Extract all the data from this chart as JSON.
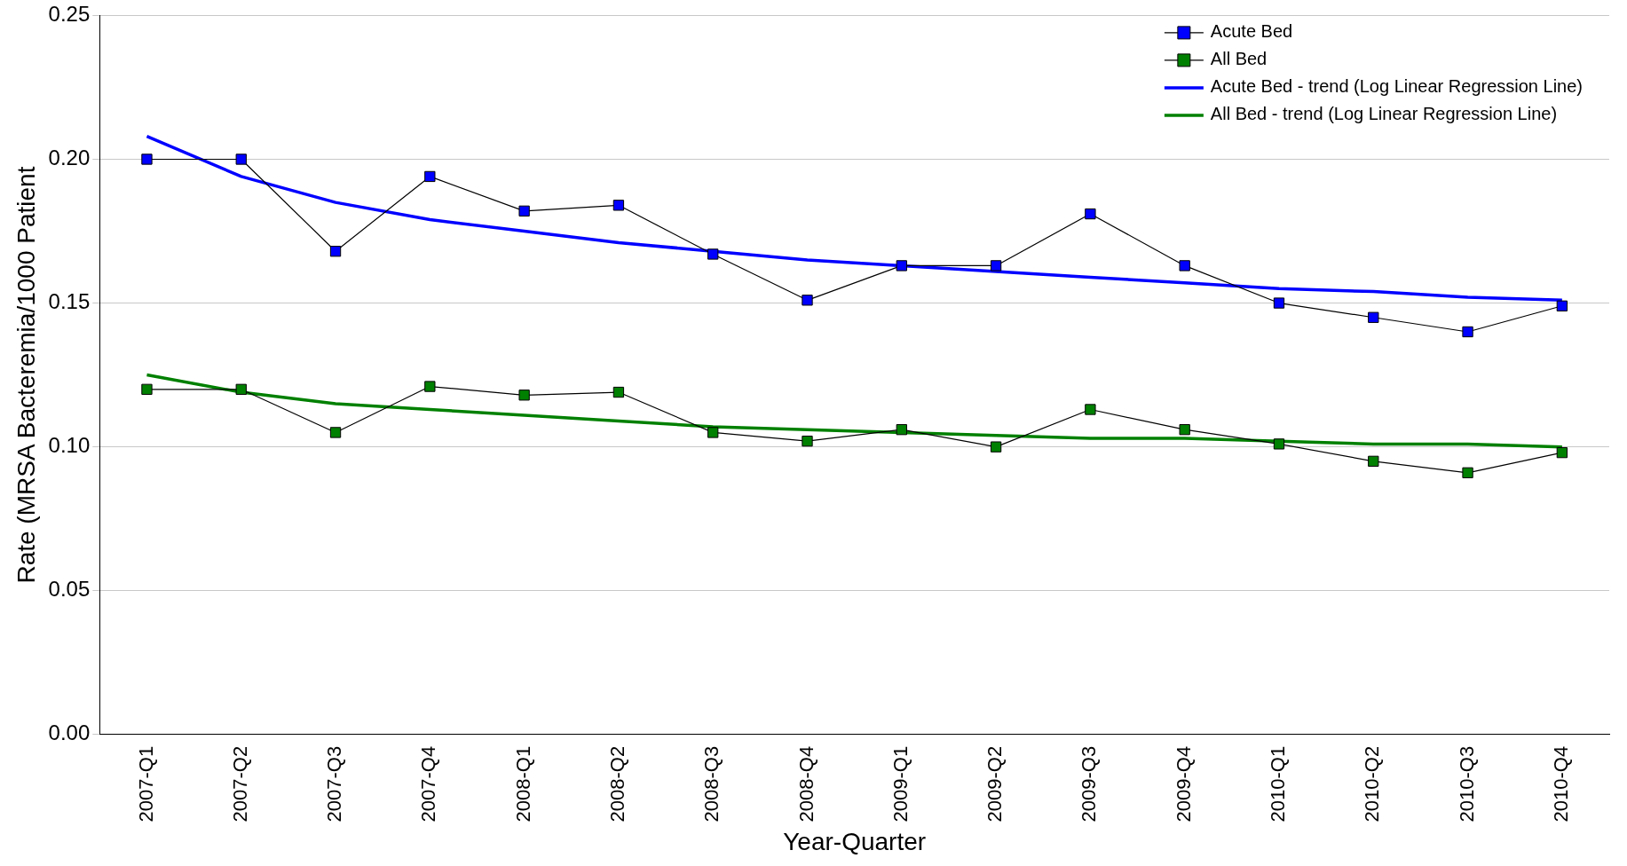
{
  "chart_data": {
    "type": "line",
    "xlabel": "Year-Quarter",
    "ylabel": "Rate (MRSA Bacteremia/1000 Patient",
    "categories": [
      "2007-Q1",
      "2007-Q2",
      "2007-Q3",
      "2007-Q4",
      "2008-Q1",
      "2008-Q2",
      "2008-Q3",
      "2008-Q4",
      "2009-Q1",
      "2009-Q2",
      "2009-Q3",
      "2009-Q4",
      "2010-Q1",
      "2010-Q2",
      "2010-Q3",
      "2010-Q4"
    ],
    "series": [
      {
        "name": "Acute Bed",
        "color": "#0000ff",
        "marker": "square",
        "values": [
          0.2,
          0.2,
          0.168,
          0.194,
          0.182,
          0.184,
          0.167,
          0.151,
          0.163,
          0.163,
          0.181,
          0.163,
          0.15,
          0.145,
          0.14,
          0.149
        ]
      },
      {
        "name": "All Bed",
        "color": "#008000",
        "marker": "square",
        "values": [
          0.12,
          0.12,
          0.105,
          0.121,
          0.118,
          0.119,
          0.105,
          0.102,
          0.106,
          0.1,
          0.113,
          0.106,
          0.101,
          0.095,
          0.091,
          0.098
        ]
      },
      {
        "name": "Acute Bed - trend (Log Linear Regression Line)",
        "color": "#0000ff",
        "marker": "none",
        "values": [
          0.208,
          0.194,
          0.185,
          0.179,
          0.175,
          0.171,
          0.168,
          0.165,
          0.163,
          0.161,
          0.159,
          0.157,
          0.155,
          0.154,
          0.152,
          0.151
        ]
      },
      {
        "name": "All Bed - trend (Log Linear Regression Line)",
        "color": "#008000",
        "marker": "none",
        "values": [
          0.125,
          0.119,
          0.115,
          0.113,
          0.111,
          0.109,
          0.107,
          0.106,
          0.105,
          0.104,
          0.103,
          0.103,
          0.102,
          0.101,
          0.101,
          0.1
        ]
      }
    ],
    "ylim": [
      0,
      0.25
    ],
    "yticks": [
      {
        "value": 0,
        "label": "0.00"
      },
      {
        "value": 0.05,
        "label": "0.05"
      },
      {
        "value": 0.1,
        "label": "0.10"
      },
      {
        "value": 0.15,
        "label": "0.15"
      },
      {
        "value": 0.2,
        "label": "0.20"
      },
      {
        "value": 0.25,
        "label": "0.25"
      }
    ],
    "grid": "y",
    "legend": "top right"
  }
}
